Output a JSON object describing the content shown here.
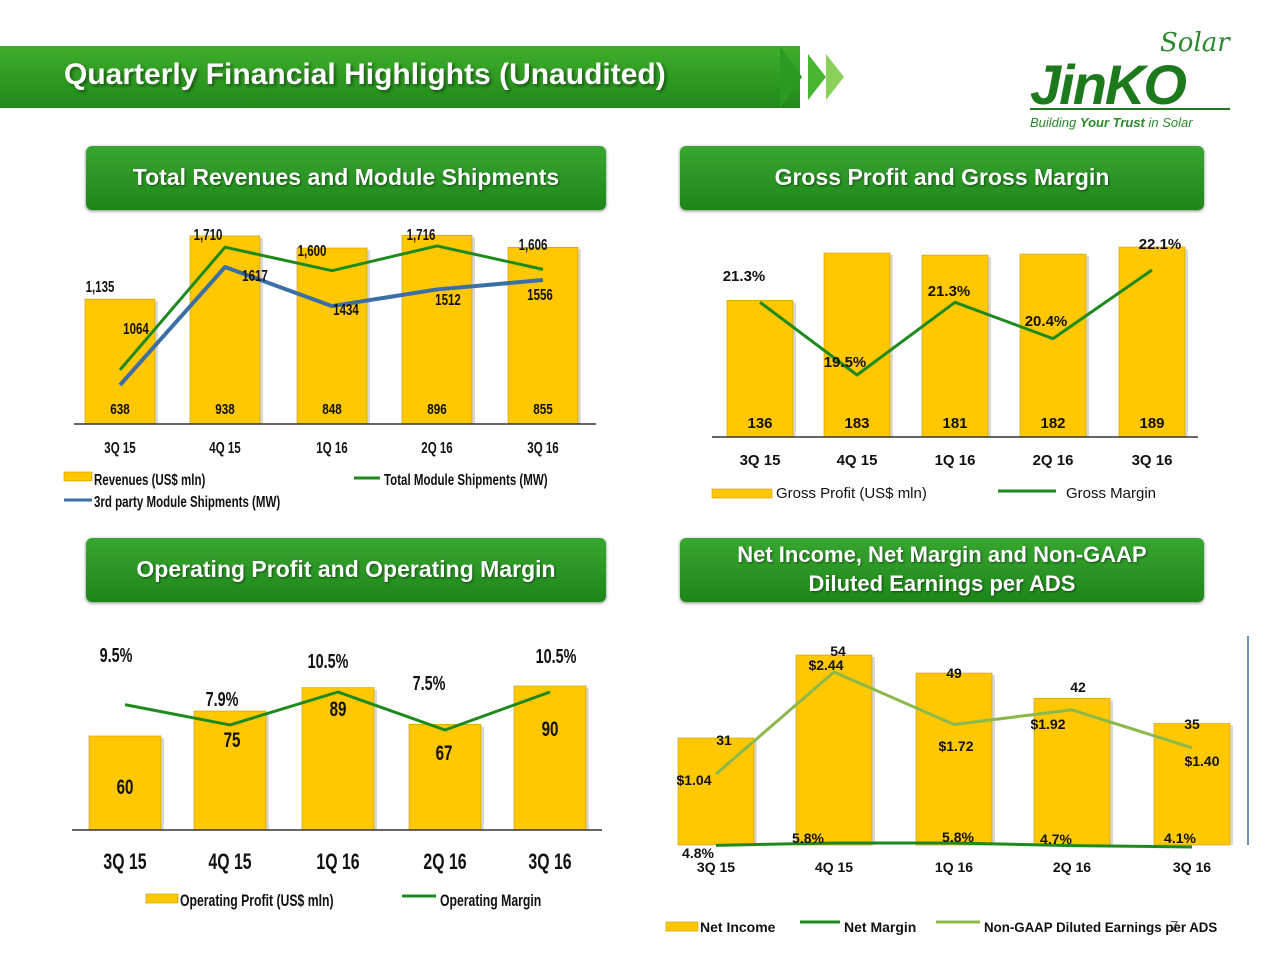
{
  "header": {
    "title": "Quarterly Financial Highlights (Unaudited)",
    "logo_brand": "JinKO",
    "logo_sub": "Solar",
    "logo_tag_a": "Building ",
    "logo_tag_b": "Your Trust",
    "logo_tag_c": " in Solar"
  },
  "colors": {
    "bar": "#FFC800",
    "bar_edge": "#C99A00",
    "line_dark": "#1E8A1E",
    "line_light": "#8DB84A",
    "line_blue": "#3B6EA5",
    "heading": "#2A9A22"
  },
  "chart_data": [
    {
      "id": "revenues",
      "type": "bar",
      "title": "Total Revenues and Module Shipments",
      "categories": [
        "3Q 15",
        "4Q 15",
        "1Q 16",
        "2Q 16",
        "3Q 16"
      ],
      "series": [
        {
          "name": "Revenues (US$ mln)",
          "kind": "bar",
          "values": [
            638,
            938,
            848,
            896,
            855
          ]
        },
        {
          "name": "Total Module Shipments (MW)",
          "kind": "line",
          "values": [
            1135,
            1710,
            1600,
            1716,
            1606
          ],
          "labels": [
            "1,135",
            "1,710",
            "1,600",
            "1,716",
            "1,606"
          ]
        },
        {
          "name": "3rd party Module Shipments (MW)",
          "kind": "line",
          "values": [
            1064,
            1617,
            1434,
            1512,
            1556
          ],
          "labels": [
            "1064",
            "1617",
            "1434",
            "1512",
            "1556"
          ]
        }
      ]
    },
    {
      "id": "gross",
      "type": "bar",
      "title": "Gross Profit and Gross Margin",
      "categories": [
        "3Q 15",
        "4Q 15",
        "1Q 16",
        "2Q 16",
        "3Q 16"
      ],
      "series": [
        {
          "name": "Gross Profit (US$ mln)",
          "kind": "bar",
          "values": [
            136,
            183,
            181,
            182,
            189
          ]
        },
        {
          "name": "Gross Margin",
          "kind": "line",
          "values": [
            21.3,
            19.5,
            21.3,
            20.4,
            22.1
          ],
          "labels": [
            "21.3%",
            "19.5%",
            "21.3%",
            "20.4%",
            "22.1%"
          ]
        }
      ]
    },
    {
      "id": "operating",
      "type": "bar",
      "title": "Operating Profit and Operating Margin",
      "categories": [
        "3Q 15",
        "4Q 15",
        "1Q 16",
        "2Q 16",
        "3Q 16"
      ],
      "series": [
        {
          "name": "Operating Profit (US$ mln)",
          "kind": "bar",
          "values": [
            60,
            75,
            89,
            67,
            90
          ]
        },
        {
          "name": "Operating Margin",
          "kind": "line",
          "values": [
            9.5,
            7.9,
            10.5,
            7.5,
            10.5
          ],
          "labels": [
            "9.5%",
            "7.9%",
            "10.5%",
            "7.5%",
            "10.5%"
          ]
        }
      ]
    },
    {
      "id": "netincome",
      "type": "bar",
      "title": "Net Income, Net Margin and Non-GAAP Diluted Earnings per ADS",
      "categories": [
        "3Q 15",
        "4Q 15",
        "1Q 16",
        "2Q 16",
        "3Q 16"
      ],
      "series": [
        {
          "name": "Net Income",
          "kind": "bar",
          "values": [
            31,
            54,
            49,
            42,
            35
          ]
        },
        {
          "name": "Net Margin",
          "kind": "line",
          "values": [
            4.8,
            5.8,
            5.8,
            4.7,
            4.1
          ],
          "labels": [
            "4.8%",
            "5.8%",
            "5.8%",
            "4.7%",
            "4.1%"
          ]
        },
        {
          "name": "Non-GAAP Diluted Earnings per ADS",
          "kind": "line",
          "values": [
            1.04,
            2.44,
            1.72,
            1.92,
            1.4
          ],
          "labels": [
            "$1.04",
            "$2.44",
            "$1.72",
            "$1.92",
            "$1.40"
          ]
        }
      ]
    }
  ],
  "page_number": "7"
}
